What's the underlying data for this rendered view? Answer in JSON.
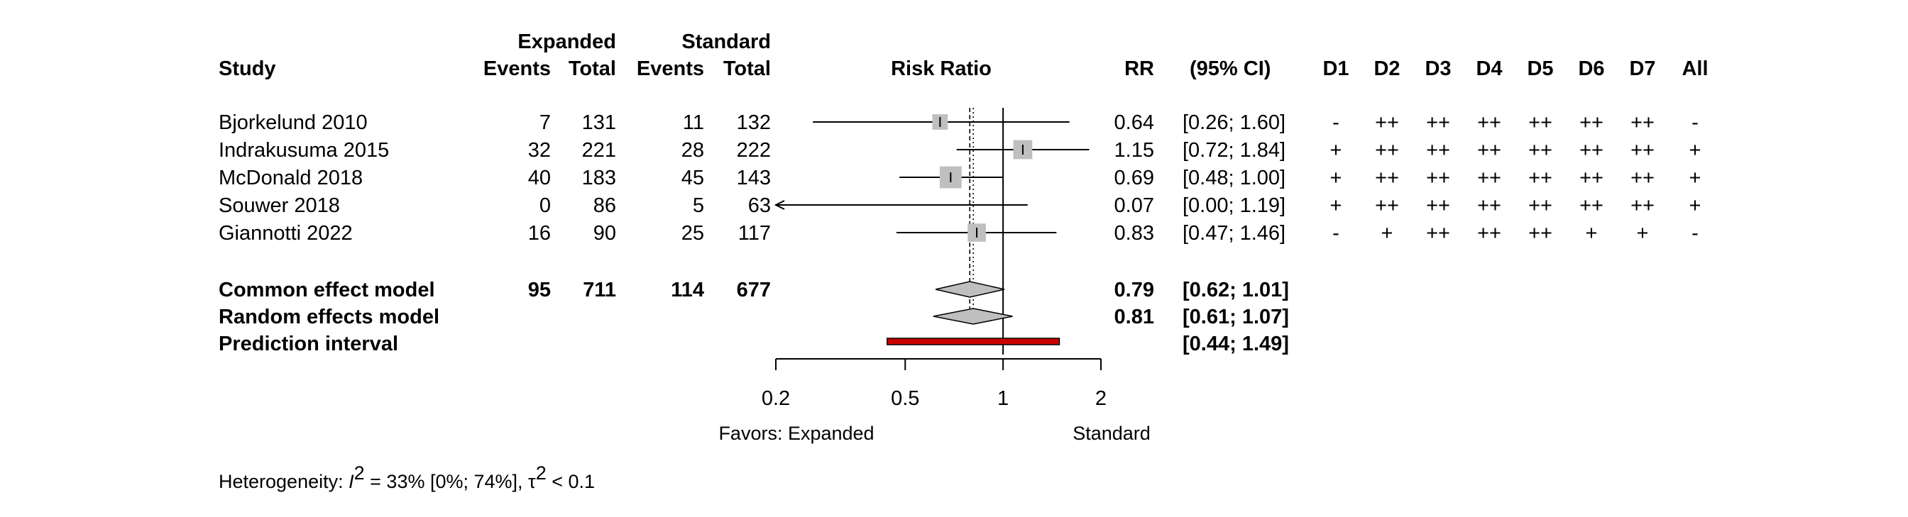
{
  "chart_data": {
    "type": "forest",
    "headers": {
      "study": "Study",
      "group1": "Expanded",
      "group2": "Standard",
      "events": "Events",
      "total": "Total",
      "plot": "Risk Ratio",
      "rr": "RR",
      "ci": "(95% CI)",
      "domains": [
        "D1",
        "D2",
        "D3",
        "D4",
        "D5",
        "D6",
        "D7",
        "All"
      ]
    },
    "studies": [
      {
        "name": "Bjorkelund 2010",
        "e1": "7",
        "n1": "131",
        "e2": "11",
        "n2": "132",
        "rr": 0.64,
        "lo": 0.26,
        "hi": 1.6,
        "rr_text": "0.64",
        "ci_text": "[0.26; 1.60]",
        "weight": 0.09,
        "rob": [
          "-",
          "++",
          "++",
          "++",
          "++",
          "++",
          "++",
          "-"
        ]
      },
      {
        "name": "Indrakusuma 2015",
        "e1": "32",
        "n1": "221",
        "e2": "28",
        "n2": "222",
        "rr": 1.15,
        "lo": 0.72,
        "hi": 1.84,
        "rr_text": "1.15",
        "ci_text": "[0.72; 1.84]",
        "weight": 0.24,
        "rob": [
          "+",
          "++",
          "++",
          "++",
          "++",
          "++",
          "++",
          "+"
        ]
      },
      {
        "name": "McDonald 2018",
        "e1": "40",
        "n1": "183",
        "e2": "45",
        "n2": "143",
        "rr": 0.69,
        "lo": 0.48,
        "hi": 1.0,
        "rr_text": "0.69",
        "ci_text": "[0.48; 1.00]",
        "weight": 0.42,
        "rob": [
          "+",
          "++",
          "++",
          "++",
          "++",
          "++",
          "++",
          "+"
        ]
      },
      {
        "name": "Souwer 2018",
        "e1": "0",
        "n1": "86",
        "e2": "5",
        "n2": "63",
        "rr": 0.07,
        "lo": 0.004,
        "hi": 1.19,
        "rr_text": "0.07",
        "ci_text": "[0.00; 1.19]",
        "weight": 0.0,
        "rob": [
          "+",
          "++",
          "++",
          "++",
          "++",
          "++",
          "++",
          "+"
        ]
      },
      {
        "name": "Giannotti 2022",
        "e1": "16",
        "n1": "90",
        "e2": "25",
        "n2": "117",
        "rr": 0.83,
        "lo": 0.47,
        "hi": 1.46,
        "rr_text": "0.83",
        "ci_text": "[0.47; 1.46]",
        "weight": 0.2,
        "rob": [
          "-",
          "+",
          "++",
          "++",
          "++",
          "+",
          "+",
          "-"
        ]
      }
    ],
    "common": {
      "label": "Common effect model",
      "e1": "95",
      "n1": "711",
      "e2": "114",
      "n2": "677",
      "rr": 0.79,
      "lo": 0.62,
      "hi": 1.01,
      "rr_text": "0.79",
      "ci_text": "[0.62; 1.01]"
    },
    "random": {
      "label": "Random effects model",
      "rr": 0.81,
      "lo": 0.61,
      "hi": 1.07,
      "rr_text": "0.81",
      "ci_text": "[0.61; 1.07]"
    },
    "prediction": {
      "label": "Prediction interval",
      "lo": 0.44,
      "hi": 1.49,
      "ci_text": "[0.44; 1.49]",
      "color": "#cc0000"
    },
    "x_axis": {
      "scale": "log",
      "range": [
        0.2,
        2
      ],
      "ticks": [
        0.2,
        0.5,
        1,
        2
      ],
      "tick_labels": [
        "0.2",
        "0.5",
        "1",
        "2"
      ]
    },
    "favors_left": "Favors: Expanded",
    "favors_right": "Standard",
    "heterogeneity": {
      "prefix": "Heterogeneity: ",
      "i_symbol": "I",
      "sq": "2",
      "i2_text": " = 33% [0%; 74%], ",
      "tau_symbol": "τ",
      "tau_text": " < 0.1"
    },
    "colors": {
      "square": "#bfbfbf",
      "diamond": "#bfbfbf",
      "prediction": "#cc0000",
      "line": "#000000"
    }
  }
}
